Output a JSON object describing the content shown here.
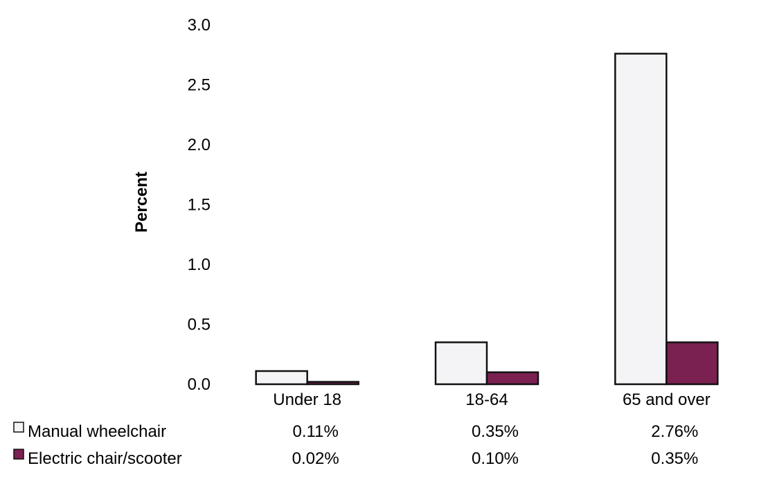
{
  "chart_data": {
    "type": "bar",
    "ylabel": "Percent",
    "ylim": [
      0,
      3.0
    ],
    "yticks": [
      "0.0",
      "0.5",
      "1.0",
      "1.5",
      "2.0",
      "2.5",
      "3.0"
    ],
    "categories": [
      "Under 18",
      "18-64",
      "65 and over"
    ],
    "series": [
      {
        "name": "Manual wheelchair",
        "values": [
          0.11,
          0.35,
          2.76
        ],
        "labels": [
          "0.11%",
          "0.35%",
          "2.76%"
        ],
        "color": "#f4f4f6"
      },
      {
        "name": "Electric chair/scooter",
        "values": [
          0.02,
          0.1,
          0.35
        ],
        "labels": [
          "0.02%",
          "0.10%",
          "0.35%"
        ],
        "color": "#7a2152"
      }
    ],
    "grid": false,
    "legend": "data table below chart"
  }
}
